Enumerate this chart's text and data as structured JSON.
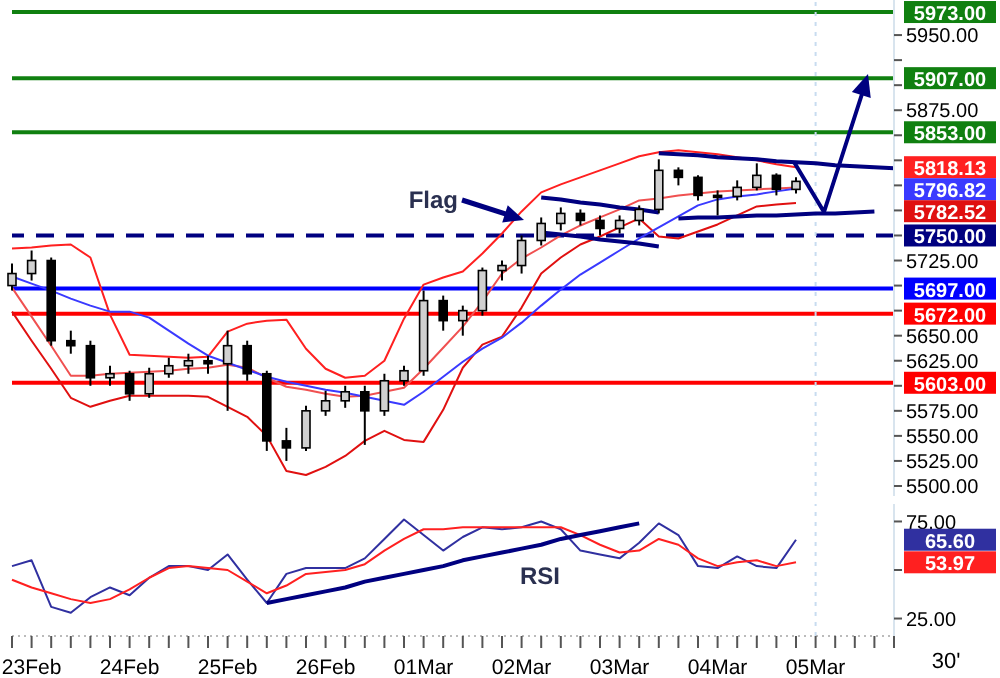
{
  "chart_data": [
    {
      "type": "candlestick",
      "color": "#000000",
      "marker": "none",
      "tick_labels": "y",
      "categories": [
        null,
        "23Feb",
        null,
        null,
        null,
        null,
        "24Feb",
        null,
        null,
        null,
        null,
        "25Feb",
        null,
        null,
        null,
        null,
        "26Feb",
        null,
        null,
        null,
        null,
        "01Mar",
        null,
        null,
        null,
        null,
        "02Mar",
        null,
        null,
        null,
        null,
        "03Mar",
        null,
        null,
        null,
        null,
        "04Mar",
        null,
        null,
        null,
        null,
        "05Mar",
        null,
        null,
        null,
        null
      ],
      "ohlc": [
        [
          5700,
          5722,
          5695,
          5712
        ],
        [
          5712,
          5735,
          5705,
          5725
        ],
        [
          5725,
          5728,
          5640,
          5645
        ],
        [
          5645,
          5655,
          5632,
          5640
        ],
        [
          5640,
          5645,
          5600,
          5608
        ],
        [
          5608,
          5620,
          5600,
          5612
        ],
        [
          5612,
          5615,
          5585,
          5592
        ],
        [
          5592,
          5618,
          5588,
          5612
        ],
        [
          5612,
          5628,
          5608,
          5620
        ],
        [
          5620,
          5632,
          5612,
          5625
        ],
        [
          5625,
          5630,
          5612,
          5622
        ],
        [
          5622,
          5655,
          5575,
          5640
        ],
        [
          5640,
          5645,
          5605,
          5612
        ],
        [
          5612,
          5615,
          5535,
          5545
        ],
        [
          5545,
          5558,
          5525,
          5538
        ],
        [
          5538,
          5580,
          5535,
          5575
        ],
        [
          5575,
          5595,
          5570,
          5585
        ],
        [
          5585,
          5600,
          5578,
          5594
        ],
        [
          5594,
          5600,
          5541,
          5575
        ],
        [
          5575,
          5612,
          5570,
          5605
        ],
        [
          5605,
          5620,
          5600,
          5615
        ],
        [
          5615,
          5695,
          5610,
          5685
        ],
        [
          5685,
          5690,
          5655,
          5665
        ],
        [
          5665,
          5680,
          5650,
          5675
        ],
        [
          5675,
          5718,
          5670,
          5715
        ],
        [
          5715,
          5725,
          5705,
          5720
        ],
        [
          5720,
          5750,
          5712,
          5745
        ],
        [
          5745,
          5768,
          5740,
          5762
        ],
        [
          5762,
          5778,
          5755,
          5772
        ],
        [
          5772,
          5776,
          5760,
          5765
        ],
        [
          5765,
          5770,
          5750,
          5757
        ],
        [
          5757,
          5770,
          5752,
          5765
        ],
        [
          5765,
          5780,
          5760,
          5776
        ],
        [
          5776,
          5826,
          5772,
          5815
        ],
        [
          5815,
          5818,
          5800,
          5808
        ],
        [
          5808,
          5810,
          5785,
          5790
        ],
        [
          5790,
          5795,
          5770,
          5789
        ],
        [
          5789,
          5805,
          5785,
          5798
        ],
        [
          5798,
          5822,
          5795,
          5810
        ],
        [
          5810,
          5812,
          5790,
          5796
        ],
        [
          5796,
          5808,
          5792,
          5804
        ],
        null,
        null,
        null,
        null,
        null
      ],
      "series": [
        {
          "type": "line",
          "color": "#ff2020",
          "values": [
            5737,
            5738,
            5740,
            5741,
            5728,
            5671,
            5631,
            5630,
            5629,
            5628,
            5629,
            5654,
            5662,
            5665,
            5666,
            5637,
            5617,
            5608,
            5610,
            5625,
            5667,
            5701,
            5708,
            5714,
            5732,
            5752,
            5774,
            5793,
            5801,
            5808,
            5815,
            5822,
            5829,
            5833,
            5835,
            5833,
            5831,
            5828,
            5825,
            5821,
            5818.13,
            null,
            null,
            null,
            null,
            null
          ]
        },
        {
          "type": "line",
          "color": "#f05050",
          "values": [
            5698,
            5669,
            5640,
            5610,
            5610,
            5612,
            5613,
            5614,
            5615,
            5617,
            5618,
            5621,
            5618,
            5608,
            5599,
            5596,
            5592,
            5589,
            5590,
            5594,
            5598,
            5617,
            5638,
            5659,
            5684,
            5712,
            5727,
            5738,
            5750,
            5760,
            5768,
            5776,
            5785,
            5787,
            5790,
            5792,
            5794,
            5795,
            5796,
            5797,
            5798,
            null,
            null,
            null,
            null,
            null
          ]
        },
        {
          "type": "line",
          "color": "#e01010",
          "values": [
            5674,
            5645,
            5617,
            5588,
            5579,
            5585,
            5590,
            5590,
            5590,
            5590,
            5589,
            5579,
            5569,
            5550,
            5515,
            5511,
            5519,
            5530,
            5545,
            5555,
            5546,
            5544,
            5576,
            5618,
            5641,
            5649,
            5678,
            5712,
            5728,
            5741,
            5749,
            5758,
            5767,
            5749,
            5747,
            5754,
            5761,
            5770,
            5779,
            5781,
            5782.52,
            null,
            null,
            null,
            null,
            null
          ]
        },
        {
          "type": "line",
          "color": "#3a3aff",
          "values": [
            5709,
            5702,
            5695,
            5687,
            5680,
            5674,
            5674,
            5668,
            5655,
            5642,
            5630,
            5623,
            5616,
            5609,
            5604,
            5600,
            5596,
            5593,
            5589,
            5585,
            5581,
            5594,
            5609,
            5624,
            5637,
            5648,
            5663,
            5680,
            5696,
            5711,
            5723,
            5735,
            5747,
            5758,
            5769,
            5780,
            5786,
            5789,
            5791,
            5794,
            5796.82,
            null,
            null,
            null,
            null,
            null
          ]
        },
        {
          "type": "line",
          "color": "#000080",
          "values": [
            null,
            null,
            null,
            null,
            null,
            null,
            null,
            null,
            null,
            null,
            null,
            null,
            null,
            null,
            null,
            null,
            null,
            null,
            null,
            null,
            null,
            null,
            null,
            null,
            null,
            null,
            null,
            5788,
            5786,
            5783,
            5781,
            5778,
            5776,
            5773,
            null,
            null,
            null,
            null,
            null,
            null,
            null,
            null,
            null,
            null,
            null,
            null
          ]
        },
        {
          "type": "line",
          "color": "#000080",
          "values": [
            null,
            null,
            null,
            null,
            null,
            null,
            null,
            null,
            null,
            null,
            null,
            null,
            null,
            null,
            null,
            null,
            null,
            null,
            null,
            null,
            null,
            null,
            null,
            null,
            null,
            null,
            null,
            5753,
            5751,
            5749,
            5746,
            5744,
            5742,
            5739,
            null,
            null,
            null,
            null,
            null,
            null,
            null,
            null,
            null,
            null,
            null,
            null
          ]
        },
        {
          "type": "line",
          "color": "#000080",
          "values": [
            null,
            null,
            null,
            null,
            null,
            null,
            null,
            null,
            null,
            null,
            null,
            null,
            null,
            null,
            null,
            null,
            null,
            null,
            null,
            null,
            null,
            null,
            null,
            null,
            null,
            null,
            null,
            null,
            null,
            null,
            null,
            null,
            null,
            5832,
            5831,
            5830,
            5828,
            5827,
            5826,
            5824,
            5823,
            5822,
            5820,
            5819,
            5818,
            5817
          ]
        },
        {
          "type": "line",
          "color": "#000080",
          "values": [
            null,
            null,
            null,
            null,
            null,
            null,
            null,
            null,
            null,
            null,
            null,
            null,
            null,
            null,
            null,
            null,
            null,
            null,
            null,
            null,
            null,
            null,
            null,
            null,
            null,
            null,
            null,
            null,
            null,
            null,
            null,
            null,
            null,
            null,
            5767,
            5768,
            5768,
            5769,
            5770,
            5770,
            5771,
            5772,
            5772,
            5773,
            5774,
            null
          ]
        }
      ],
      "ylim": [
        5490,
        5985
      ],
      "yticks": [
        {
          "value": 5500,
          "label": "5500.00"
        },
        {
          "value": 5525,
          "label": "5525.00"
        },
        {
          "value": 5550,
          "label": "5550.00"
        },
        {
          "value": 5575,
          "label": "5575.00"
        },
        {
          "value": 5600,
          "label": null
        },
        {
          "value": 5625,
          "label": "5625.00"
        },
        {
          "value": 5650,
          "label": "5650.00"
        },
        {
          "value": 5675,
          "label": null
        },
        {
          "value": 5700,
          "label": null
        },
        {
          "value": 5725,
          "label": "5725.00"
        },
        {
          "value": 5750,
          "label": null
        },
        {
          "value": 5775,
          "label": null
        },
        {
          "value": 5800,
          "label": null
        },
        {
          "value": 5825,
          "label": null
        },
        {
          "value": 5850,
          "label": null
        },
        {
          "value": 5875,
          "label": "5875.00"
        },
        {
          "value": 5900,
          "label": null
        },
        {
          "value": 5925,
          "label": null
        },
        {
          "value": 5950,
          "label": "5950.00"
        }
      ],
      "ref_lines": [
        {
          "axis": "y",
          "value": 5973,
          "label": "5973.00",
          "color": "#108010"
        },
        {
          "axis": "y",
          "value": 5907,
          "label": "5907.00",
          "color": "#108010"
        },
        {
          "axis": "y",
          "value": 5853,
          "label": "5853.00",
          "color": "#108010"
        },
        {
          "axis": "y",
          "value": 5750,
          "label": "5750.00",
          "color": "#000080",
          "line_style": "dashed"
        },
        {
          "axis": "y",
          "value": 5697,
          "label": "5697.00",
          "color": "#0000ff"
        },
        {
          "axis": "y",
          "value": 5672,
          "label": "5672.00",
          "color": "#ff0000"
        },
        {
          "axis": "y",
          "value": 5603,
          "label": "5603.00",
          "color": "#ff0000"
        },
        {
          "axis": "x",
          "value": "05Mar",
          "color": "#c8dcf0",
          "line_style": "dotted"
        }
      ],
      "annotations": [
        "Flag",
        "5818.13",
        "5796.82",
        "5782.52"
      ]
    },
    {
      "type": "line",
      "marker": "none",
      "xlabel": "30'",
      "categories": [
        null,
        "23Feb",
        null,
        null,
        null,
        null,
        "24Feb",
        null,
        null,
        null,
        null,
        "25Feb",
        null,
        null,
        null,
        null,
        "26Feb",
        null,
        null,
        null,
        null,
        "01Mar",
        null,
        null,
        null,
        null,
        "02Mar",
        null,
        null,
        null,
        null,
        "03Mar",
        null,
        null,
        null,
        null,
        "04Mar",
        null,
        null,
        null,
        null,
        "05Mar",
        null,
        null,
        null,
        null
      ],
      "series": [
        {
          "color": "#3030a0",
          "values": [
            52,
            55,
            31,
            28,
            36,
            41,
            37,
            46,
            52,
            52,
            50,
            58,
            45,
            33,
            48,
            51,
            51,
            51,
            56,
            66,
            76,
            68,
            60,
            67,
            72,
            71,
            72,
            75,
            71,
            60,
            58,
            56,
            64,
            74,
            68,
            52,
            51,
            57,
            52,
            51,
            65.6,
            null,
            null,
            null,
            null,
            null
          ]
        },
        {
          "color": "#ff2020",
          "values": [
            45,
            41,
            38,
            35,
            33,
            35,
            40,
            46,
            51,
            52,
            51,
            50,
            44,
            38,
            42,
            48,
            49,
            50,
            53,
            60,
            66,
            71,
            71,
            72,
            72,
            72,
            72,
            72,
            72,
            68,
            63,
            59,
            60,
            66,
            63,
            56,
            52,
            54,
            55,
            52,
            53.97,
            null,
            null,
            null,
            null,
            null
          ]
        },
        {
          "color": "#000080",
          "values": [
            null,
            null,
            null,
            null,
            null,
            null,
            null,
            null,
            null,
            null,
            null,
            null,
            null,
            33,
            35,
            37,
            39,
            41,
            44,
            46,
            48,
            50,
            52,
            55,
            57,
            59,
            61,
            63,
            66,
            68,
            70,
            72,
            74,
            null,
            null,
            null,
            null,
            null,
            null,
            null,
            null,
            null,
            null,
            null,
            null,
            null
          ]
        }
      ],
      "ylim": [
        16,
        84
      ],
      "yticks": [
        {
          "value": 25,
          "label": "25.00"
        },
        {
          "value": 50,
          "label": null
        },
        {
          "value": 75,
          "label": "75.00"
        }
      ],
      "ref_lines": [
        {
          "axis": "x",
          "value": "05Mar",
          "color": "#c8dcf0",
          "line_style": "dotted"
        }
      ],
      "annotations": [
        "RSI",
        "65.60",
        "53.97"
      ]
    }
  ]
}
